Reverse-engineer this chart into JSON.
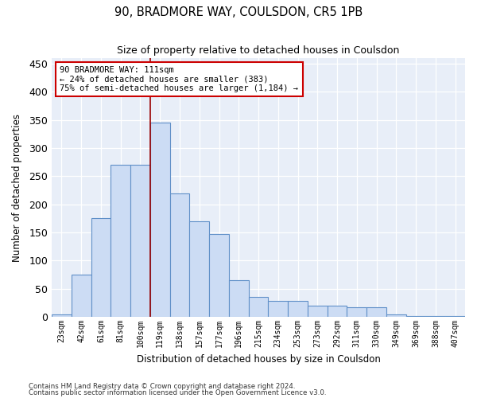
{
  "title": "90, BRADMORE WAY, COULSDON, CR5 1PB",
  "subtitle": "Size of property relative to detached houses in Coulsdon",
  "xlabel": "Distribution of detached houses by size in Coulsdon",
  "ylabel": "Number of detached properties",
  "bar_color": "#ccdcf4",
  "bar_edge_color": "#6090c8",
  "background_color": "#e8eef8",
  "grid_color": "#ffffff",
  "categories": [
    "23sqm",
    "42sqm",
    "61sqm",
    "81sqm",
    "100sqm",
    "119sqm",
    "138sqm",
    "157sqm",
    "177sqm",
    "196sqm",
    "215sqm",
    "234sqm",
    "253sqm",
    "273sqm",
    "292sqm",
    "311sqm",
    "330sqm",
    "349sqm",
    "369sqm",
    "388sqm",
    "407sqm"
  ],
  "values": [
    5,
    75,
    175,
    270,
    270,
    345,
    220,
    170,
    148,
    65,
    35,
    28,
    28,
    20,
    20,
    17,
    17,
    5,
    2,
    2,
    2
  ],
  "red_line_x": 4.5,
  "annotation_line1": "90 BRADMORE WAY: 111sqm",
  "annotation_line2": "← 24% of detached houses are smaller (383)",
  "annotation_line3": "75% of semi-detached houses are larger (1,184) →",
  "annotation_box_facecolor": "#ffffff",
  "annotation_box_edgecolor": "#cc0000",
  "ylim_max": 460,
  "yticks": [
    0,
    50,
    100,
    150,
    200,
    250,
    300,
    350,
    400,
    450
  ],
  "footer1": "Contains HM Land Registry data © Crown copyright and database right 2024.",
  "footer2": "Contains public sector information licensed under the Open Government Licence v3.0."
}
